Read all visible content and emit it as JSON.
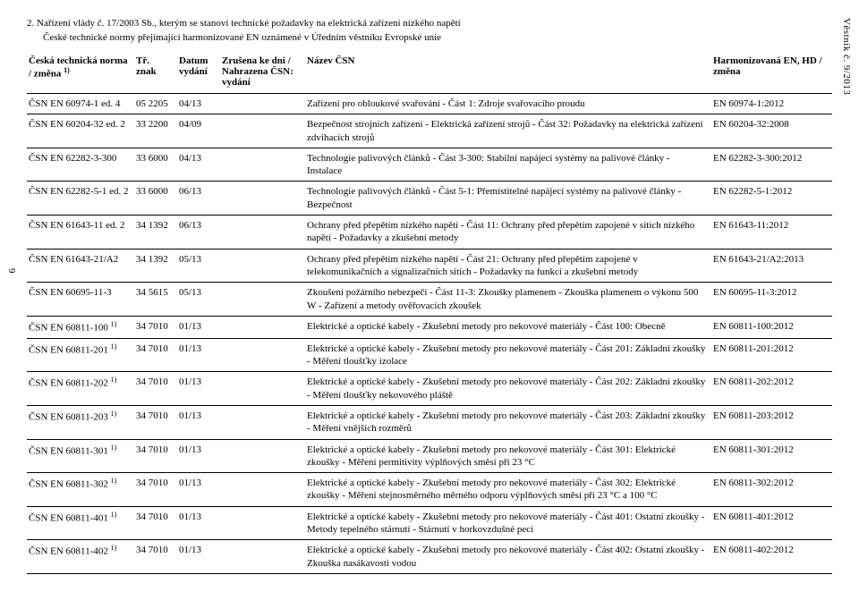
{
  "side_label": "Věstník č. 9/2013",
  "page_number": "6",
  "decree_line": "2.  Nařízení vlády č. 17/2003 Sb., kterým se stanoví technické požadavky na elektrická zařízení nízkého napětí",
  "desc_line": "České technické normy přejímající harmonizované EN oznámené v Úředním věstníku Evropské unie",
  "headers": {
    "c1": "Česká technická norma / změna ",
    "c1_sup": "1)",
    "c2": "Tř. znak",
    "c3": "Datum vydání",
    "c4": "Zrušena ke dni / Nahrazena ČSN: vydání",
    "c5": "Název ČSN",
    "c6": "Harmonizovaná EN, HD / změna"
  },
  "rows": [
    {
      "n": "ČSN EN 60974-1 ed. 4",
      "t": "05 2205",
      "d": "04/13",
      "r": "",
      "name": "Zařízení pro obloukové svařování - Část 1: Zdroje svařovacího proudu",
      "h": "EN 60974-1:2012"
    },
    {
      "n": "ČSN EN 60204-32 ed. 2",
      "t": "33 2200",
      "d": "04/09",
      "r": "",
      "name": "Bezpečnost strojních zařízení - Elektrická zařízení strojů - Část 32: Požadavky na elektrická zařízení zdvihacích strojů",
      "h": "EN 60204-32:2008"
    },
    {
      "n": "ČSN EN 62282-3-300",
      "t": "33 6000",
      "d": "04/13",
      "r": "",
      "name": "Technologie palivových článků - Část 3-300: Stabilní napájecí systémy na palivové články - Instalace",
      "h": "EN 62282-3-300:2012"
    },
    {
      "n": "ČSN EN 62282-5-1 ed. 2",
      "t": "33 6000",
      "d": "06/13",
      "r": "",
      "name": "Technologie palivových článků - Část 5-1: Přemístitelné napájecí systémy na palivové články - Bezpečnost",
      "h": "EN 62282-5-1:2012"
    },
    {
      "n": "ČSN EN 61643-11 ed. 2",
      "t": "34 1392",
      "d": "06/13",
      "r": "",
      "name": "Ochrany před přepětím nízkého napětí - Část 11: Ochrany před přepětím zapojené v sítích nízkého napětí - Požadavky a zkušební metody",
      "h": "EN 61643-11:2012"
    },
    {
      "n": "ČSN EN 61643-21/A2",
      "t": "34 1392",
      "d": "05/13",
      "r": "",
      "name": "Ochrany před přepětím nízkého napětí - Část 21: Ochrany před přepětím zapojené v telekomunikačních a signalizačních sítích - Požadavky na funkci a zkušební metody",
      "h": "EN 61643-21/A2:2013"
    },
    {
      "n": "ČSN EN 60695-11-3",
      "t": "34 5615",
      "d": "05/13",
      "r": "",
      "name": "Zkoušení požárního nebezpečí - Část 11-3: Zkoušky plamenem - Zkouška plamenem o výkonu 500 W - Zařízení a metody ověřovacích zkoušek",
      "h": "EN 60695-11-3:2012"
    },
    {
      "n": "ČSN EN 60811-100 ",
      "sup": "1)",
      "t": "34 7010",
      "d": "01/13",
      "r": "",
      "name": "Elektrické a optické kabely - Zkušební metody pro nekovové materiály - Část 100: Obecně",
      "h": "EN 60811-100:2012"
    },
    {
      "n": "ČSN EN 60811-201 ",
      "sup": "1)",
      "t": "34 7010",
      "d": "01/13",
      "r": "",
      "name": "Elektrické a optické kabely - Zkušební metody pro nekovové materiály - Část 201: Základní zkoušky - Měření tloušťky izolace",
      "h": "EN 60811-201:2012"
    },
    {
      "n": "ČSN EN 60811-202 ",
      "sup": "1)",
      "t": "34 7010",
      "d": "01/13",
      "r": "",
      "name": "Elektrické a optické kabely - Zkušební metody pro nekovové materiály - Část 202: Základní zkoušky - Měření tloušťky nekovového pláště",
      "h": "EN 60811-202:2012"
    },
    {
      "n": "ČSN EN 60811-203 ",
      "sup": "1)",
      "t": "34 7010",
      "d": "01/13",
      "r": "",
      "name": "Elektrické a optické kabely - Zkušební metody pro nekovové materiály - Část 203: Základní zkoušky - Měření vnějších rozměrů",
      "h": "EN 60811-203:2012"
    },
    {
      "n": "ČSN EN 60811-301 ",
      "sup": "1)",
      "t": "34 7010",
      "d": "01/13",
      "r": "",
      "name": "Elektrické a optické kabely - Zkušební metody pro nekovové materiály - Část 301: Elektrické zkoušky - Měření permitivity výplňových směsí při 23 °C",
      "h": "EN 60811-301:2012"
    },
    {
      "n": "ČSN EN 60811-302 ",
      "sup": "1)",
      "t": "34 7010",
      "d": "01/13",
      "r": "",
      "name": "Elektrické a optické kabely - Zkušební metody pro nekovové materiály - Část 302: Elektrické zkoušky - Měření stejnosměrného měrného odporu výplňových směsí při 23 °C a 100 °C",
      "h": "EN 60811-302:2012"
    },
    {
      "n": "ČSN EN 60811-401 ",
      "sup": "1)",
      "t": "34 7010",
      "d": "01/13",
      "r": "",
      "name": "Elektrické a optické kabely - Zkušební metody pro nekovové materiály - Část 401: Ostatní zkoušky - Metody tepelného stárnutí - Stárnutí v horkovzdušné peci",
      "h": "EN 60811-401:2012"
    },
    {
      "n": "ČSN EN 60811-402 ",
      "sup": "1)",
      "t": "34 7010",
      "d": "01/13",
      "r": "",
      "name": "Elektrické a optické kabely - Zkušební metody pro nekovové materiály - Část 402: Ostatní zkoušky - Zkouška nasákavosti vodou",
      "h": "EN 60811-402:2012"
    }
  ]
}
